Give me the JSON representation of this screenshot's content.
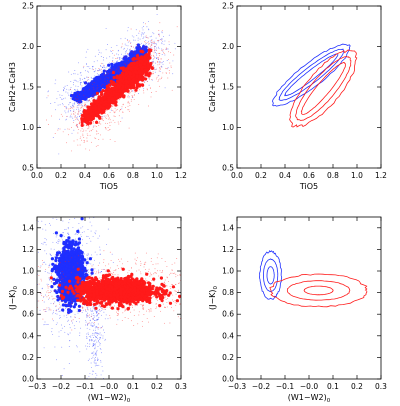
{
  "colors": {
    "blue": "#1f2fff",
    "red": "#ff1a1a"
  },
  "chart_data": [
    {
      "id": "top-left",
      "type": "scatter",
      "xlabel": "TiO5",
      "ylabel": "CaH2+CaH3",
      "xlim": [
        0.0,
        1.2
      ],
      "ylim": [
        0.5,
        2.5
      ],
      "xticks": [
        "0.0",
        "0.2",
        "0.4",
        "0.6",
        "0.8",
        "1.0",
        "1.2"
      ],
      "xtick_values": [
        0.0,
        0.2,
        0.4,
        0.6,
        0.8,
        1.0,
        1.2
      ],
      "yticks": [
        "0.5",
        "1.0",
        "1.5",
        "2.0",
        "2.5"
      ],
      "ytick_values": [
        0.5,
        1.0,
        1.5,
        2.0,
        2.5
      ],
      "series": [
        {
          "color": "blue",
          "form": "band",
          "x_start": 0.33,
          "y_start": 1.35,
          "x_end": 0.9,
          "y_end": 1.92,
          "width": 0.1
        },
        {
          "color": "red",
          "form": "band",
          "x_start": 0.4,
          "y_start": 1.1,
          "x_end": 0.93,
          "y_end": 1.82,
          "width": 0.16
        }
      ]
    },
    {
      "id": "top-right",
      "type": "contour",
      "xlabel": "TiO5",
      "ylabel": "CaH2+CaH3",
      "xlim": [
        0.0,
        1.2
      ],
      "ylim": [
        0.5,
        2.5
      ],
      "xticks": [
        "0.0",
        "0.2",
        "0.4",
        "0.6",
        "0.8",
        "1.0",
        "1.2"
      ],
      "xtick_values": [
        0.0,
        0.2,
        0.4,
        0.6,
        0.8,
        1.0,
        1.2
      ],
      "yticks": [
        "0.5",
        "1.0",
        "1.5",
        "2.0",
        "2.5"
      ],
      "ytick_values": [
        0.5,
        1.0,
        1.5,
        2.0,
        2.5
      ],
      "series": [
        {
          "color": "blue",
          "center": [
            0.62,
            1.65
          ],
          "half_length": 0.36,
          "half_width": [
            0.035,
            0.06,
            0.09
          ],
          "angle_deg": 38
        },
        {
          "color": "red",
          "center": [
            0.72,
            1.48
          ],
          "half_length": 0.36,
          "half_width": [
            0.05,
            0.09,
            0.13
          ],
          "angle_deg": 50
        }
      ]
    },
    {
      "id": "bottom-left",
      "type": "scatter",
      "xlabel": "(W1−W2)",
      "xlabel_sub": "0",
      "ylabel": "(J−K)",
      "ylabel_sub": "0",
      "xlim": [
        -0.3,
        0.3
      ],
      "ylim": [
        0.0,
        1.5
      ],
      "xticks": [
        "−0.3",
        "−0.2",
        "−0.1",
        "−0.0",
        "0.1",
        "0.2",
        "0.3"
      ],
      "xtick_values": [
        -0.3,
        -0.2,
        -0.1,
        0.0,
        0.1,
        0.2,
        0.3
      ],
      "yticks": [
        "0.0",
        "0.2",
        "0.4",
        "0.6",
        "0.8",
        "1.0",
        "1.2",
        "1.4"
      ],
      "ytick_values": [
        0.0,
        0.2,
        0.4,
        0.6,
        0.8,
        1.0,
        1.2,
        1.4
      ],
      "series": [
        {
          "color": "blue",
          "form": "blob",
          "center": [
            -0.16,
            0.97
          ],
          "sd": [
            0.025,
            0.12
          ]
        },
        {
          "color": "red",
          "form": "blob",
          "center": [
            0.03,
            0.82
          ],
          "sd": [
            0.08,
            0.055
          ]
        }
      ]
    },
    {
      "id": "bottom-right",
      "type": "contour",
      "xlabel": "(W1−W2)",
      "xlabel_sub": "0",
      "ylabel": "(J−K)",
      "ylabel_sub": "0",
      "xlim": [
        -0.3,
        0.3
      ],
      "ylim": [
        0.0,
        1.5
      ],
      "xticks": [
        "−0.3",
        "−0.2",
        "−0.1",
        "−0.0",
        "0.1",
        "0.2",
        "0.3"
      ],
      "xtick_values": [
        -0.3,
        -0.2,
        -0.1,
        0.0,
        0.1,
        0.2,
        0.3
      ],
      "yticks": [
        "0.0",
        "0.2",
        "0.4",
        "0.6",
        "0.8",
        "1.0",
        "1.2",
        "1.4"
      ],
      "ytick_values": [
        0.0,
        0.2,
        0.4,
        0.6,
        0.8,
        1.0,
        1.2,
        1.4
      ],
      "series": [
        {
          "color": "blue",
          "center": [
            -0.16,
            0.96
          ],
          "rx": [
            0.015,
            0.03,
            0.045
          ],
          "ry": [
            0.08,
            0.15,
            0.22
          ]
        },
        {
          "color": "red",
          "center": [
            0.04,
            0.82
          ],
          "rx": [
            0.06,
            0.13,
            0.2
          ],
          "ry": [
            0.04,
            0.09,
            0.15
          ]
        }
      ]
    }
  ]
}
